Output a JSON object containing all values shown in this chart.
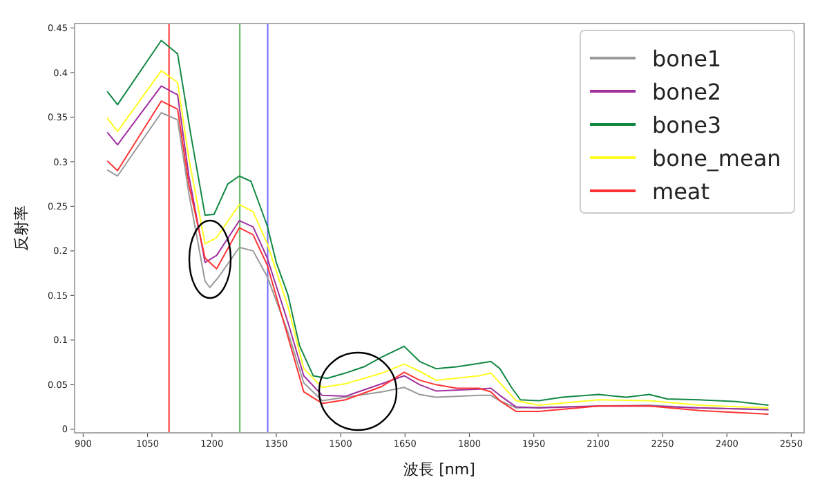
{
  "chart_data": {
    "type": "line",
    "xlabel": "波長 [nm]",
    "ylabel": "反射率",
    "xlim": [
      880,
      2580
    ],
    "ylim": [
      -0.004,
      0.455
    ],
    "xticks": [
      900,
      1050,
      1200,
      1350,
      1500,
      1650,
      1800,
      1950,
      2100,
      2250,
      2400,
      2550
    ],
    "yticks": [
      0,
      0.05,
      0.1,
      0.15,
      0.2,
      0.25,
      0.3,
      0.35,
      0.4,
      0.45
    ],
    "grid": false,
    "legend": "top right",
    "ref_lines": [
      {
        "axis": "x",
        "value": 1100,
        "color": "#ff3030"
      },
      {
        "axis": "x",
        "value": 1265,
        "color": "#5cb85c"
      },
      {
        "axis": "x",
        "value": 1330,
        "color": "#6a6aff"
      }
    ],
    "series": [
      {
        "name": "bone1",
        "color": "#999999",
        "x": [
          956,
          980,
          1082,
          1120,
          1146,
          1184,
          1195,
          1216,
          1264,
          1296,
          1329,
          1377,
          1414,
          1457,
          1511,
          1596,
          1648,
          1684,
          1722,
          1823,
          1850,
          1871,
          1909,
          2101,
          2219,
          2336,
          2497
        ],
        "values": [
          0.291,
          0.284,
          0.355,
          0.347,
          0.265,
          0.166,
          0.159,
          0.171,
          0.204,
          0.2,
          0.171,
          0.109,
          0.052,
          0.032,
          0.036,
          0.042,
          0.047,
          0.039,
          0.036,
          0.038,
          0.038,
          0.032,
          0.024,
          0.026,
          0.027,
          0.024,
          0.022
        ]
      },
      {
        "name": "bone2",
        "color": "#a030a0",
        "x": [
          956,
          980,
          1082,
          1120,
          1146,
          1184,
          1211,
          1264,
          1296,
          1329,
          1377,
          1414,
          1457,
          1511,
          1596,
          1648,
          1684,
          1722,
          1823,
          1850,
          1871,
          1909,
          1962,
          2101,
          2219,
          2336,
          2497
        ],
        "values": [
          0.333,
          0.319,
          0.385,
          0.375,
          0.285,
          0.187,
          0.195,
          0.234,
          0.227,
          0.192,
          0.12,
          0.06,
          0.038,
          0.037,
          0.051,
          0.06,
          0.05,
          0.043,
          0.045,
          0.046,
          0.038,
          0.025,
          0.024,
          0.026,
          0.026,
          0.024,
          0.022
        ]
      },
      {
        "name": "bone3",
        "color": "#118844",
        "x": [
          956,
          980,
          1082,
          1120,
          1152,
          1184,
          1205,
          1237,
          1264,
          1291,
          1329,
          1350,
          1377,
          1404,
          1436,
          1468,
          1511,
          1554,
          1596,
          1648,
          1684,
          1722,
          1770,
          1823,
          1850,
          1871,
          1898,
          1919,
          1962,
          2016,
          2101,
          2165,
          2219,
          2261,
          2336,
          2422,
          2497
        ],
        "values": [
          0.379,
          0.364,
          0.436,
          0.421,
          0.327,
          0.24,
          0.241,
          0.275,
          0.284,
          0.278,
          0.228,
          0.187,
          0.151,
          0.094,
          0.06,
          0.057,
          0.063,
          0.07,
          0.081,
          0.093,
          0.076,
          0.068,
          0.07,
          0.074,
          0.076,
          0.068,
          0.047,
          0.033,
          0.032,
          0.036,
          0.039,
          0.036,
          0.039,
          0.034,
          0.033,
          0.031,
          0.027
        ]
      },
      {
        "name": "bone_mean",
        "color": "#ffff22",
        "x": [
          956,
          980,
          1082,
          1120,
          1146,
          1184,
          1211,
          1264,
          1296,
          1329,
          1377,
          1414,
          1457,
          1511,
          1596,
          1648,
          1684,
          1722,
          1823,
          1850,
          1871,
          1909,
          1962,
          2101,
          2219,
          2336,
          2497
        ],
        "values": [
          0.349,
          0.334,
          0.402,
          0.389,
          0.304,
          0.208,
          0.215,
          0.252,
          0.244,
          0.208,
          0.138,
          0.068,
          0.047,
          0.051,
          0.063,
          0.073,
          0.065,
          0.055,
          0.06,
          0.063,
          0.052,
          0.032,
          0.027,
          0.033,
          0.032,
          0.027,
          0.024
        ]
      },
      {
        "name": "meat",
        "color": "#ff3333",
        "x": [
          956,
          980,
          1082,
          1120,
          1146,
          1184,
          1211,
          1264,
          1296,
          1329,
          1377,
          1414,
          1457,
          1511,
          1596,
          1648,
          1684,
          1722,
          1770,
          1823,
          1850,
          1871,
          1909,
          1962,
          2101,
          2219,
          2336,
          2497
        ],
        "values": [
          0.301,
          0.29,
          0.368,
          0.359,
          0.275,
          0.192,
          0.18,
          0.226,
          0.218,
          0.184,
          0.104,
          0.042,
          0.029,
          0.033,
          0.048,
          0.064,
          0.055,
          0.05,
          0.046,
          0.046,
          0.042,
          0.032,
          0.02,
          0.02,
          0.026,
          0.026,
          0.021,
          0.017
        ]
      }
    ]
  }
}
